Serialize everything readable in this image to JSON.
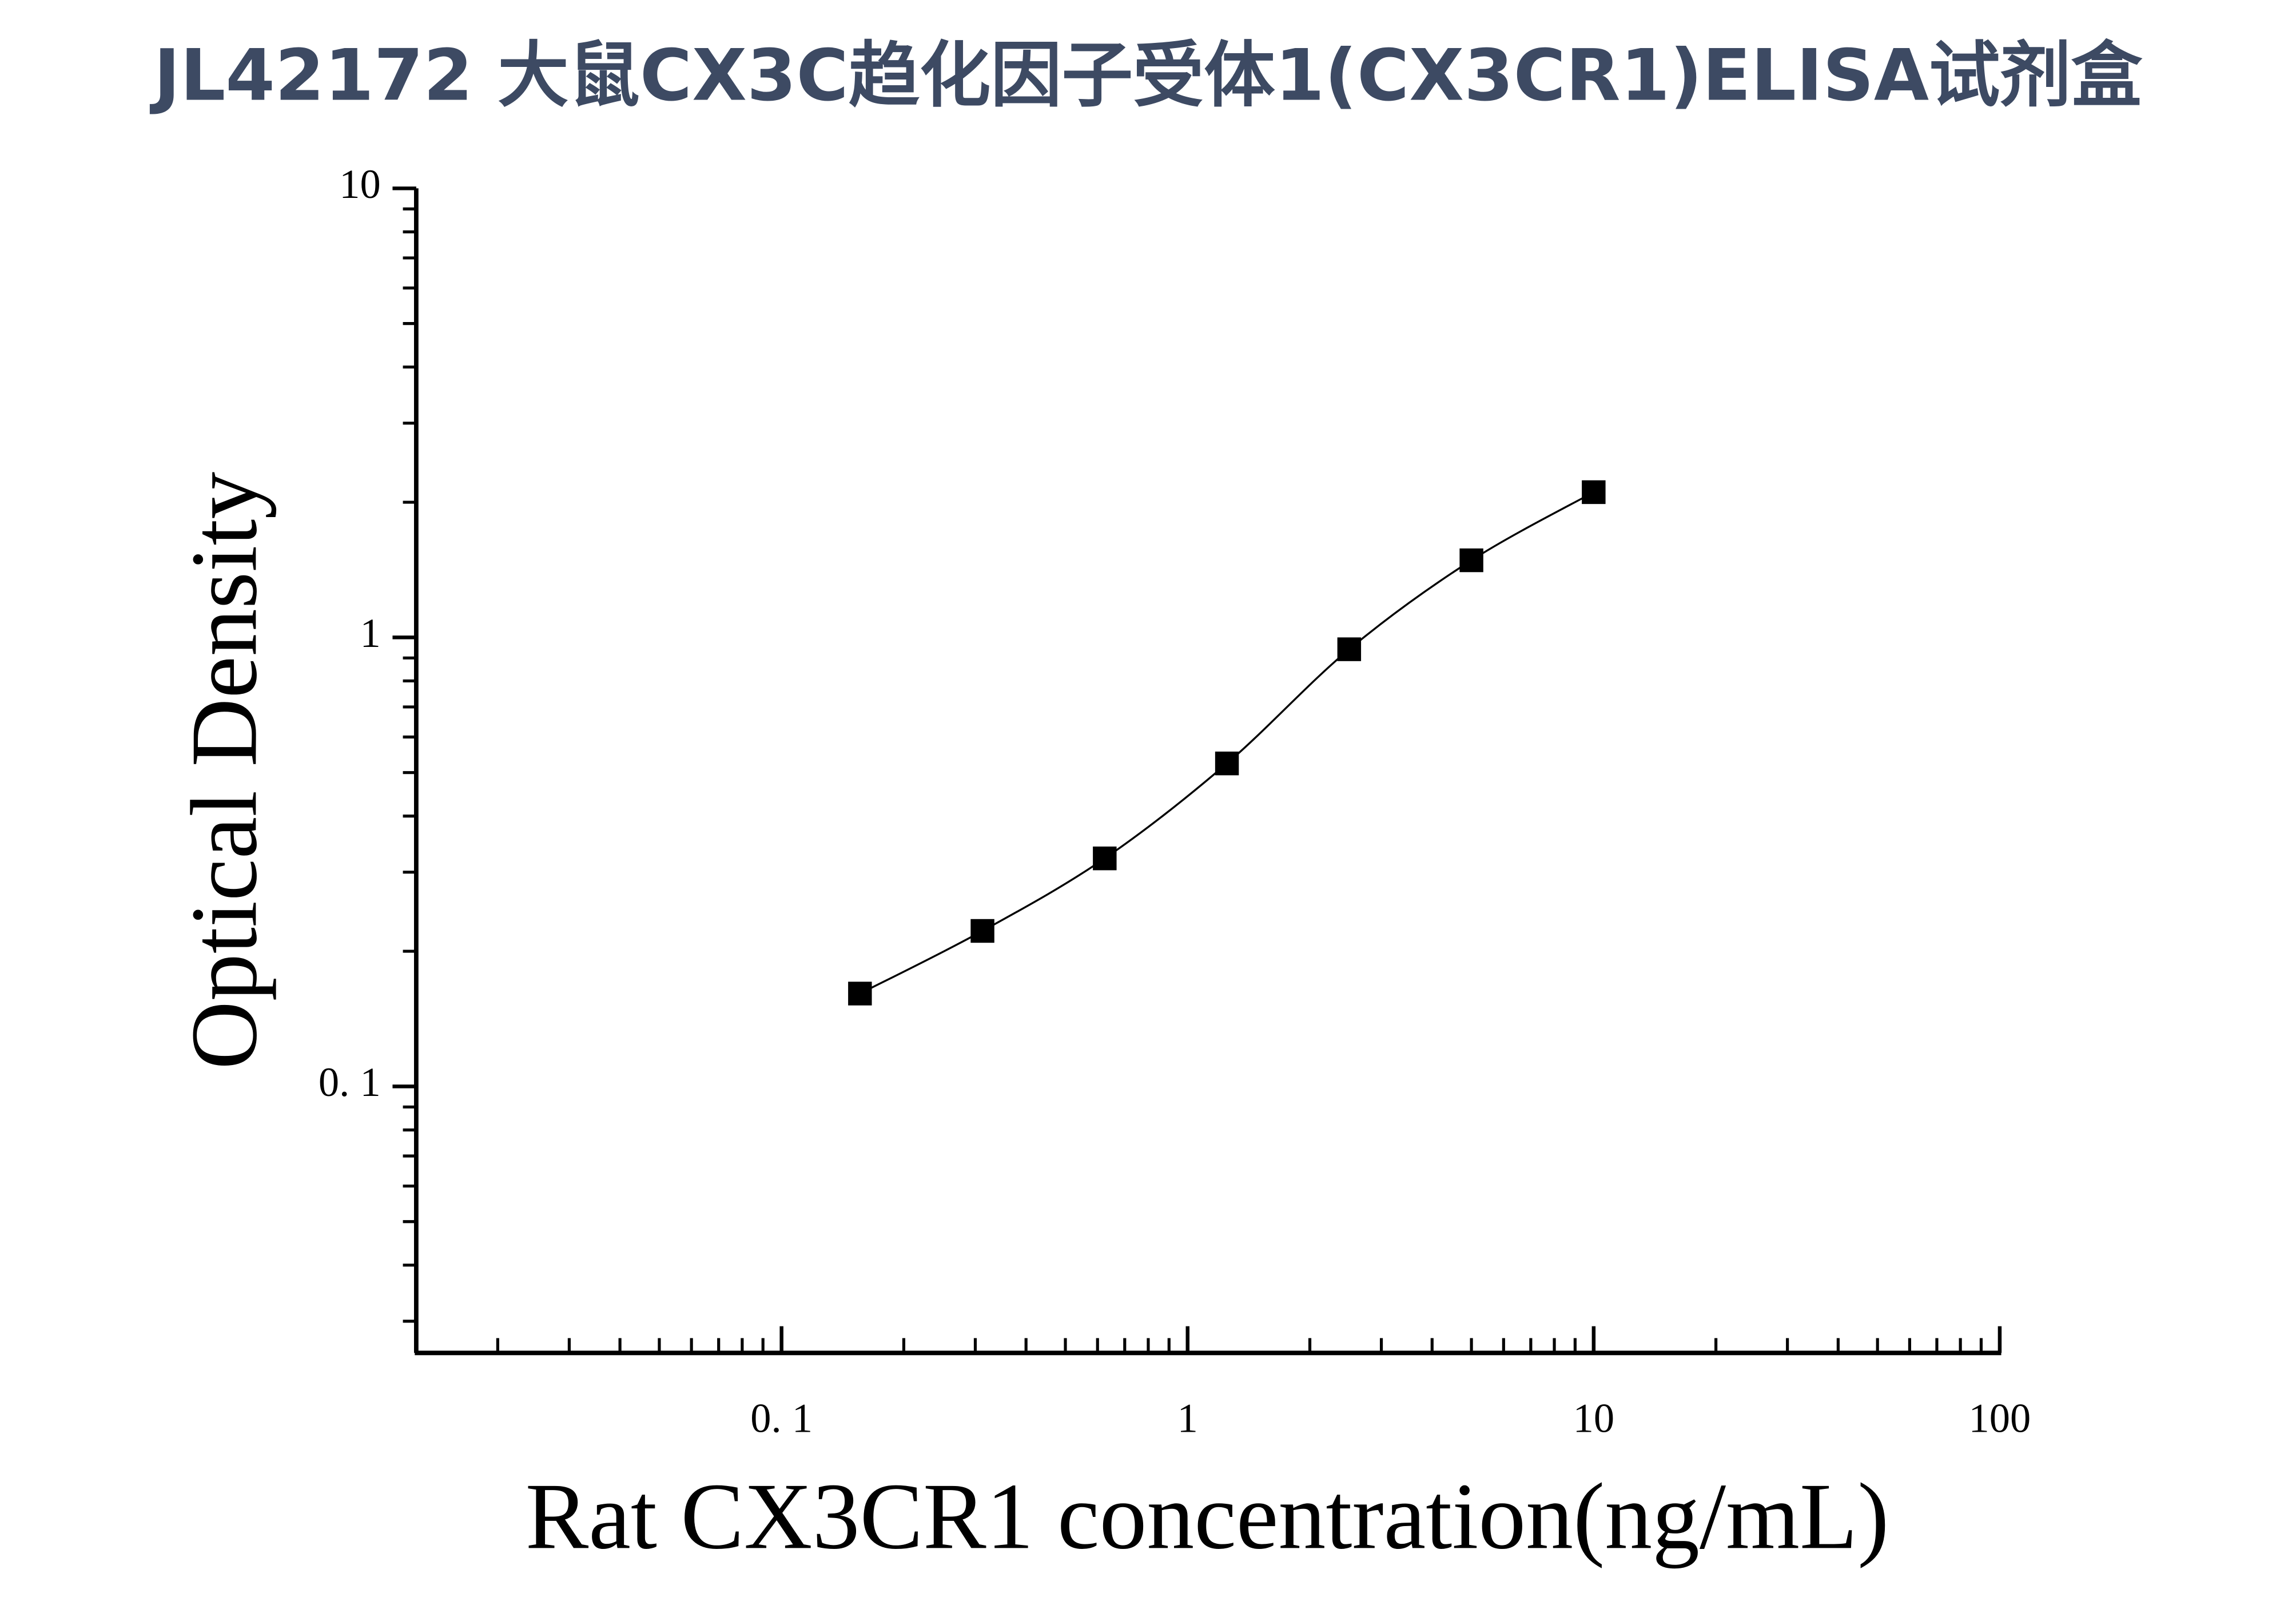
{
  "chart_data": {
    "type": "scatter",
    "title": "JL42172 大鼠CX3C趋化因子受体1(CX3CR1)ELISA试剂盒",
    "x_label": "Rat CX3CR1 concentration(ng/mL)",
    "y_label": "Optical Density",
    "x": [
      0.156,
      0.3125,
      0.625,
      1.25,
      2.5,
      5,
      10
    ],
    "series": [
      {
        "color": "#000000",
        "values": [
          0.161,
          0.222,
          0.322,
          0.524,
          0.941,
          1.485,
          2.106
        ]
      }
    ],
    "xscale": "log",
    "yscale": "log",
    "xlim": [
      0.0126,
      100
    ],
    "ylim": [
      0.0255,
      10
    ],
    "xticks": [
      {
        "value": 0.1,
        "label": "0. 1"
      },
      1,
      10,
      100
    ],
    "yticks": [
      {
        "value": 0.1,
        "label": "0. 1"
      },
      1,
      10
    ],
    "xminorticks": [
      0.02,
      0.03,
      0.04,
      0.05,
      0.06,
      0.07,
      0.08,
      0.09,
      0.2,
      0.3,
      0.4,
      0.5,
      0.6,
      0.7,
      0.8,
      0.9,
      2,
      3,
      4,
      5,
      6,
      7,
      8,
      9,
      20,
      30,
      40,
      50,
      60,
      70,
      80,
      90
    ],
    "yminorticks": [
      0.03,
      0.04,
      0.05,
      0.06,
      0.07,
      0.08,
      0.09,
      0.2,
      0.3,
      0.4,
      0.5,
      0.6,
      0.7,
      0.8,
      0.9,
      2,
      3,
      4,
      5,
      6,
      7,
      8,
      9
    ],
    "grid": false
  }
}
